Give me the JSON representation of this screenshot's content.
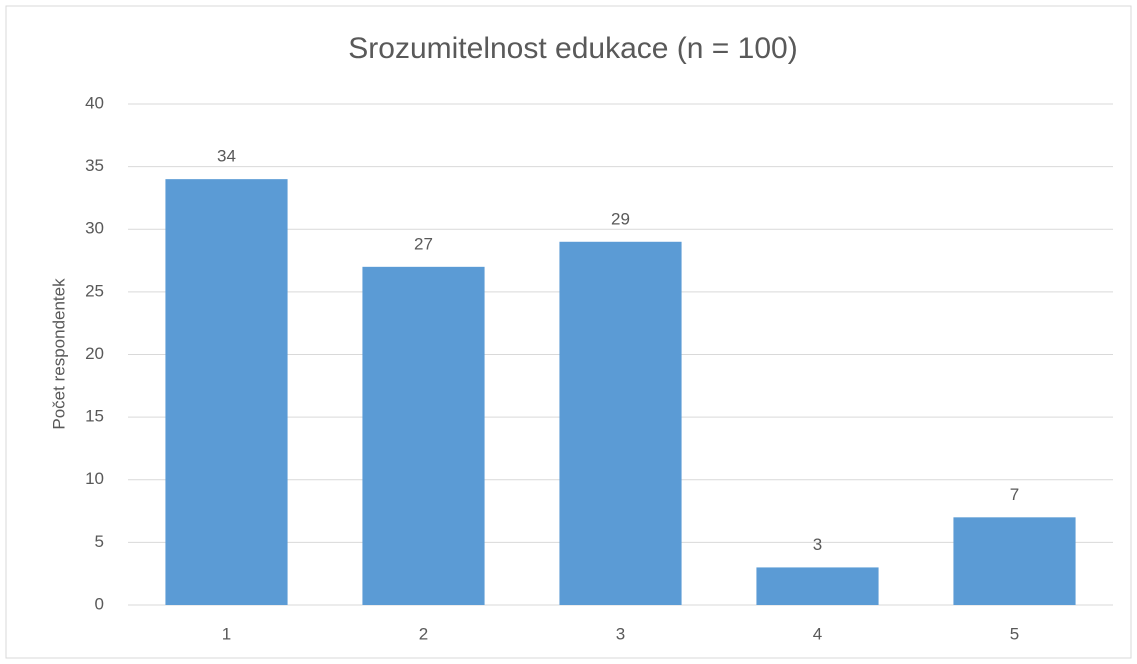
{
  "chart_data": {
    "type": "bar",
    "title": "Srozumitelnost edukace (n = 100)",
    "y_label": "Počet respondentek",
    "categories": [
      "1",
      "2",
      "3",
      "4",
      "5"
    ],
    "values": [
      34,
      27,
      29,
      3,
      7
    ],
    "color": "#5b9bd5",
    "ylim": [
      0,
      40
    ],
    "yticks": [
      0,
      5,
      10,
      15,
      20,
      25,
      30,
      35,
      40
    ],
    "grid": true
  }
}
